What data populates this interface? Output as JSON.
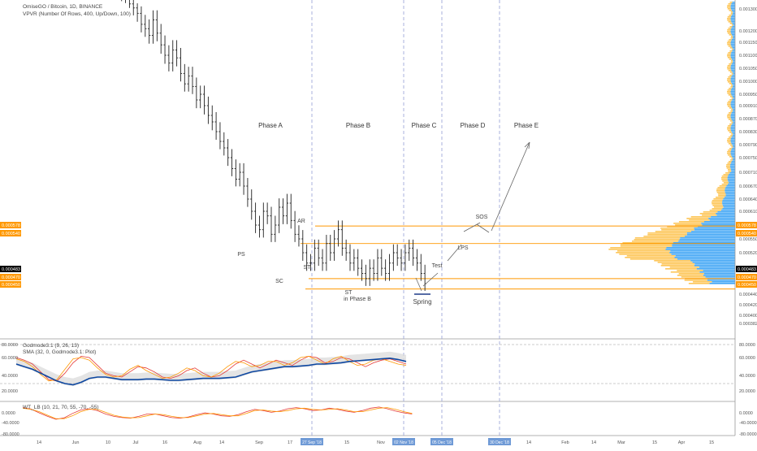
{
  "header": {
    "title": "OmiseGO / Bitcoin, 1D, BINANCE",
    "vpvr": "VPVR (Number Of Rows, 400, Up/Down, 100)"
  },
  "colors": {
    "accent_orange": "#ff9800",
    "dashed_line": "#9fa8da",
    "candle": "#222222",
    "macd_line": "#0d47a1",
    "osc_red": "#e53935",
    "osc_orange": "#ff9800",
    "vp_blue": "#2196f3",
    "vp_orange": "#fdbc3b",
    "last_price_bg": "#000000"
  },
  "chart_data": [
    {
      "type": "candlestick",
      "symbol": "OmiseGO / Bitcoin",
      "interval": "1D",
      "exchange": "BINANCE",
      "y_axis_ticks": [
        "0.001300",
        "0.001200",
        "0.001150",
        "0.001100",
        "0.001050",
        "0.001000",
        "0.000950",
        "0.000910",
        "0.000870",
        "0.000830",
        "0.000790",
        "0.000750",
        "0.000710",
        "0.000670",
        "0.000640",
        "0.000610",
        "0.000550",
        "0.000520",
        "0.000440",
        "0.000420",
        "0.000400",
        "0.000382"
      ],
      "x_axis_ticks": [
        "14",
        "Jun",
        "10",
        "Jul",
        "16",
        "Aug",
        "14",
        "Sep",
        "17",
        "15",
        "Nov",
        "14",
        "Feb",
        "14",
        "Mar",
        "15",
        "Apr",
        "15"
      ],
      "highlighted_dates": [
        "27 Sep '18",
        "02 Nov '18",
        "05 Dec '18",
        "30 Dec '18"
      ],
      "price_badges": [
        {
          "label": "0.000578",
          "kind": "level"
        },
        {
          "label": "0.000540",
          "kind": "level"
        },
        {
          "label": "0.000483",
          "kind": "last"
        },
        {
          "label": "0.000470",
          "kind": "level"
        },
        {
          "label": "0.000450",
          "kind": "level"
        }
      ],
      "levels": [
        0.000578,
        0.00054,
        0.00047,
        0.00045
      ],
      "phases": [
        "Phase A",
        "Phase B",
        "Phase C",
        "Phase D",
        "Phase E"
      ],
      "annotations": [
        "PS",
        "SC",
        "AR",
        "ST",
        "ST",
        "in Phase B",
        "Spring",
        "Test",
        "LPS",
        "SOS"
      ],
      "closes": [
        0.00155,
        0.00148,
        0.00142,
        0.0014,
        0.00135,
        0.00131,
        0.00128,
        0.00123,
        0.00121,
        0.00118,
        0.00125,
        0.00119,
        0.00114,
        0.0011,
        0.00107,
        0.00112,
        0.00109,
        0.00103,
        0.00099,
        0.00102,
        0.00098,
        0.00093,
        0.00095,
        0.00091,
        0.00088,
        0.00086,
        0.00083,
        0.0008,
        0.00078,
        0.00075,
        0.00072,
        0.00069,
        0.00071,
        0.00067,
        0.00064,
        0.00061,
        0.00058,
        0.00057,
        0.00061,
        0.0006,
        0.00056,
        0.00058,
        0.00062,
        0.0006,
        0.00063,
        0.00059,
        0.00056,
        0.00055,
        0.00052,
        0.0005,
        0.0005,
        0.00053,
        0.00051,
        0.0005,
        0.00054,
        0.00052,
        0.00055,
        0.00057,
        0.00053,
        0.00052,
        0.0005,
        0.00051,
        0.00049,
        0.00048,
        0.00047,
        0.00049,
        0.00048,
        0.00051,
        0.00049,
        0.00048,
        0.0005,
        0.00052,
        0.00051,
        0.0005,
        0.00052,
        0.00053,
        0.00051,
        0.0005,
        0.00048,
        0.00046
      ]
    },
    {
      "type": "line",
      "indicator": "Godmode3.1 (9, 26, 13)",
      "sub_indicator": "SMA (32, 0, Godmode3.1: Plot)",
      "y_axis_ticks": [
        "80.0000",
        "60.0000",
        "40.0000",
        "20.0000"
      ],
      "series": [
        {
          "values": [
            60,
            56,
            50,
            38,
            26,
            24,
            36,
            52,
            62,
            60,
            48,
            36,
            32,
            30,
            38,
            46,
            44,
            38,
            30,
            28,
            32,
            40,
            44,
            36,
            30,
            32,
            40,
            50,
            56,
            50,
            44,
            50,
            56,
            52,
            48,
            56,
            62,
            60,
            52,
            54,
            60,
            58,
            52,
            46,
            52,
            56,
            58,
            54,
            50
          ]
        },
        {
          "values": [
            58,
            54,
            46,
            34,
            24,
            26,
            42,
            58,
            60,
            56,
            44,
            34,
            30,
            32,
            42,
            48,
            40,
            34,
            28,
            30,
            36,
            44,
            40,
            32,
            30,
            36,
            46,
            54,
            52,
            46,
            48,
            54,
            54,
            48,
            52,
            60,
            62,
            56,
            50,
            58,
            62,
            54,
            48,
            50,
            56,
            58,
            54,
            50,
            48
          ]
        },
        {
          "values": [
            50,
            46,
            42,
            36,
            30,
            24,
            20,
            18,
            22,
            28,
            30,
            30,
            28,
            26,
            26,
            26,
            27,
            27,
            26,
            25,
            25,
            26,
            27,
            28,
            28,
            28,
            29,
            30,
            34,
            38,
            40,
            42,
            44,
            46,
            46,
            47,
            48,
            50,
            50,
            51,
            52,
            54,
            55,
            56,
            57,
            58,
            59,
            57,
            54
          ]
        }
      ]
    },
    {
      "type": "line",
      "indicator": "WT_LB (10, 21, 70, 55, -70, -55)",
      "y_axis_ticks": [
        "0.0000",
        "-40.0000",
        "-80.0000"
      ],
      "series": [
        {
          "values": [
            0,
            -5,
            -18,
            -30,
            -40,
            -35,
            -20,
            -8,
            -4,
            -10,
            -22,
            -30,
            -34,
            -36,
            -30,
            -22,
            -22,
            -28,
            -34,
            -36,
            -32,
            -24,
            -18,
            -22,
            -28,
            -30,
            -24,
            -14,
            -6,
            -10,
            -16,
            -12,
            -4,
            0,
            -4,
            -10,
            -8,
            -2,
            -6,
            -12,
            -16,
            -10,
            -2,
            2,
            -4,
            -12,
            -18,
            -22
          ]
        },
        {
          "values": [
            -2,
            -6,
            -14,
            -26,
            -38,
            -38,
            -28,
            -14,
            -6,
            -6,
            -16,
            -26,
            -32,
            -35,
            -34,
            -28,
            -22,
            -24,
            -30,
            -34,
            -34,
            -28,
            -22,
            -20,
            -24,
            -28,
            -28,
            -20,
            -10,
            -8,
            -12,
            -14,
            -10,
            -4,
            -2,
            -6,
            -8,
            -6,
            -4,
            -8,
            -14,
            -14,
            -8,
            -2,
            0,
            -6,
            -14,
            -20
          ]
        }
      ]
    }
  ]
}
